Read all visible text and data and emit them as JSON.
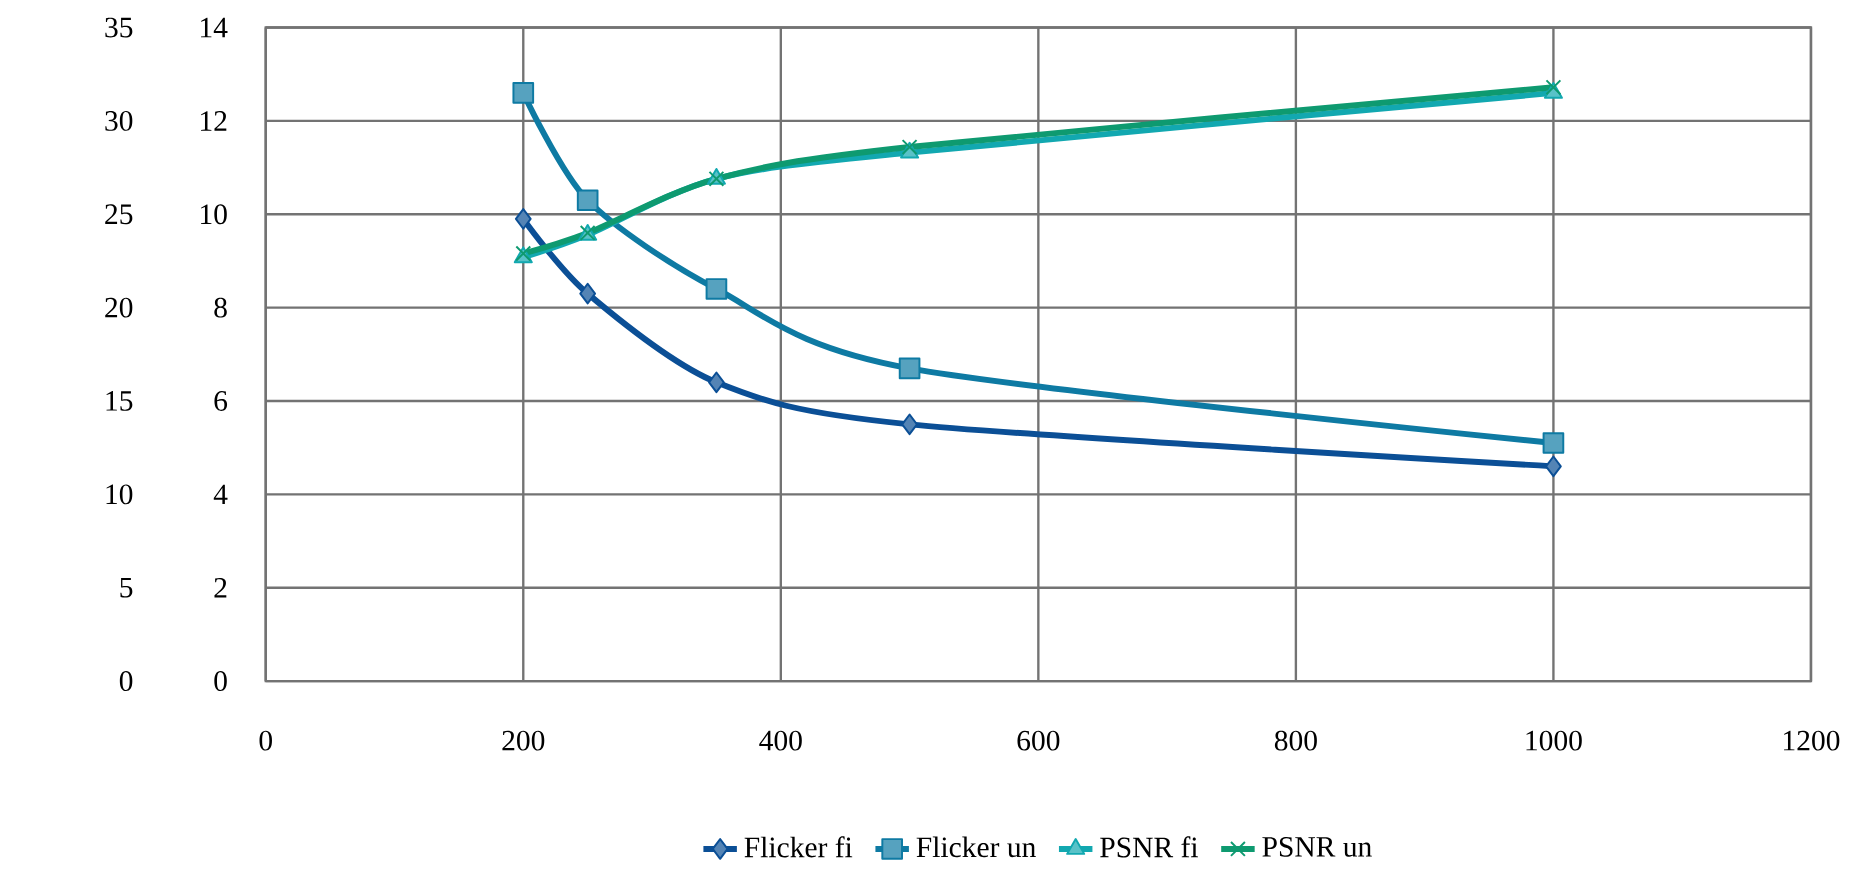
{
  "chart_data": {
    "type": "line",
    "x": [
      200,
      250,
      350,
      500,
      1000
    ],
    "xlim": [
      0,
      1200
    ],
    "xticks": [
      0,
      200,
      400,
      600,
      800,
      1000,
      1200
    ],
    "ylim": [
      0,
      35
    ],
    "yticks": [
      0,
      5,
      10,
      15,
      20,
      25,
      30,
      35
    ],
    "y2lim": [
      0,
      14
    ],
    "y2ticks": [
      0,
      2,
      4,
      6,
      8,
      10,
      12,
      14
    ],
    "grid": true,
    "legend": "bottom",
    "series": [
      {
        "name": "Flicker fi",
        "color": "#0b4f96",
        "marker": "diamond",
        "axis": "y2",
        "values": [
          9.9,
          8.3,
          6.4,
          5.5,
          4.6
        ]
      },
      {
        "name": "Flicker un",
        "color": "#0e7aa3",
        "marker": "square",
        "axis": "y2",
        "values": [
          12.6,
          10.3,
          8.4,
          6.7,
          5.1
        ]
      },
      {
        "name": "PSNR fi",
        "color": "#12a8b0",
        "marker": "triangle",
        "values": [
          22.7,
          23.9,
          26.9,
          28.3,
          31.5
        ]
      },
      {
        "name": "PSNR un",
        "color": "#0e9a70",
        "marker": "cross",
        "values": [
          22.9,
          24.0,
          26.9,
          28.6,
          31.8
        ]
      }
    ]
  }
}
